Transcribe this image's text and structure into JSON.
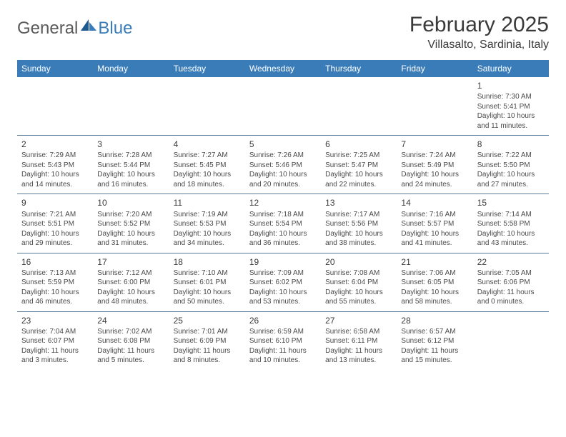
{
  "brand": {
    "general": "General",
    "blue": "Blue"
  },
  "title": "February 2025",
  "location": "Villasalto, Sardinia, Italy",
  "colors": {
    "header_bg": "#3a7cb8",
    "header_text": "#ffffff",
    "logo_gray": "#5a5a5a",
    "logo_blue": "#3a7cb8",
    "text": "#4a4a4a",
    "rule": "#5a7a9a"
  },
  "day_headers": [
    "Sunday",
    "Monday",
    "Tuesday",
    "Wednesday",
    "Thursday",
    "Friday",
    "Saturday"
  ],
  "weeks": [
    [
      {
        "empty": true
      },
      {
        "empty": true
      },
      {
        "empty": true
      },
      {
        "empty": true
      },
      {
        "empty": true
      },
      {
        "empty": true
      },
      {
        "n": "1",
        "sunrise": "Sunrise: 7:30 AM",
        "sunset": "Sunset: 5:41 PM",
        "daylight1": "Daylight: 10 hours",
        "daylight2": "and 11 minutes."
      }
    ],
    [
      {
        "n": "2",
        "sunrise": "Sunrise: 7:29 AM",
        "sunset": "Sunset: 5:43 PM",
        "daylight1": "Daylight: 10 hours",
        "daylight2": "and 14 minutes."
      },
      {
        "n": "3",
        "sunrise": "Sunrise: 7:28 AM",
        "sunset": "Sunset: 5:44 PM",
        "daylight1": "Daylight: 10 hours",
        "daylight2": "and 16 minutes."
      },
      {
        "n": "4",
        "sunrise": "Sunrise: 7:27 AM",
        "sunset": "Sunset: 5:45 PM",
        "daylight1": "Daylight: 10 hours",
        "daylight2": "and 18 minutes."
      },
      {
        "n": "5",
        "sunrise": "Sunrise: 7:26 AM",
        "sunset": "Sunset: 5:46 PM",
        "daylight1": "Daylight: 10 hours",
        "daylight2": "and 20 minutes."
      },
      {
        "n": "6",
        "sunrise": "Sunrise: 7:25 AM",
        "sunset": "Sunset: 5:47 PM",
        "daylight1": "Daylight: 10 hours",
        "daylight2": "and 22 minutes."
      },
      {
        "n": "7",
        "sunrise": "Sunrise: 7:24 AM",
        "sunset": "Sunset: 5:49 PM",
        "daylight1": "Daylight: 10 hours",
        "daylight2": "and 24 minutes."
      },
      {
        "n": "8",
        "sunrise": "Sunrise: 7:22 AM",
        "sunset": "Sunset: 5:50 PM",
        "daylight1": "Daylight: 10 hours",
        "daylight2": "and 27 minutes."
      }
    ],
    [
      {
        "n": "9",
        "sunrise": "Sunrise: 7:21 AM",
        "sunset": "Sunset: 5:51 PM",
        "daylight1": "Daylight: 10 hours",
        "daylight2": "and 29 minutes."
      },
      {
        "n": "10",
        "sunrise": "Sunrise: 7:20 AM",
        "sunset": "Sunset: 5:52 PM",
        "daylight1": "Daylight: 10 hours",
        "daylight2": "and 31 minutes."
      },
      {
        "n": "11",
        "sunrise": "Sunrise: 7:19 AM",
        "sunset": "Sunset: 5:53 PM",
        "daylight1": "Daylight: 10 hours",
        "daylight2": "and 34 minutes."
      },
      {
        "n": "12",
        "sunrise": "Sunrise: 7:18 AM",
        "sunset": "Sunset: 5:54 PM",
        "daylight1": "Daylight: 10 hours",
        "daylight2": "and 36 minutes."
      },
      {
        "n": "13",
        "sunrise": "Sunrise: 7:17 AM",
        "sunset": "Sunset: 5:56 PM",
        "daylight1": "Daylight: 10 hours",
        "daylight2": "and 38 minutes."
      },
      {
        "n": "14",
        "sunrise": "Sunrise: 7:16 AM",
        "sunset": "Sunset: 5:57 PM",
        "daylight1": "Daylight: 10 hours",
        "daylight2": "and 41 minutes."
      },
      {
        "n": "15",
        "sunrise": "Sunrise: 7:14 AM",
        "sunset": "Sunset: 5:58 PM",
        "daylight1": "Daylight: 10 hours",
        "daylight2": "and 43 minutes."
      }
    ],
    [
      {
        "n": "16",
        "sunrise": "Sunrise: 7:13 AM",
        "sunset": "Sunset: 5:59 PM",
        "daylight1": "Daylight: 10 hours",
        "daylight2": "and 46 minutes."
      },
      {
        "n": "17",
        "sunrise": "Sunrise: 7:12 AM",
        "sunset": "Sunset: 6:00 PM",
        "daylight1": "Daylight: 10 hours",
        "daylight2": "and 48 minutes."
      },
      {
        "n": "18",
        "sunrise": "Sunrise: 7:10 AM",
        "sunset": "Sunset: 6:01 PM",
        "daylight1": "Daylight: 10 hours",
        "daylight2": "and 50 minutes."
      },
      {
        "n": "19",
        "sunrise": "Sunrise: 7:09 AM",
        "sunset": "Sunset: 6:02 PM",
        "daylight1": "Daylight: 10 hours",
        "daylight2": "and 53 minutes."
      },
      {
        "n": "20",
        "sunrise": "Sunrise: 7:08 AM",
        "sunset": "Sunset: 6:04 PM",
        "daylight1": "Daylight: 10 hours",
        "daylight2": "and 55 minutes."
      },
      {
        "n": "21",
        "sunrise": "Sunrise: 7:06 AM",
        "sunset": "Sunset: 6:05 PM",
        "daylight1": "Daylight: 10 hours",
        "daylight2": "and 58 minutes."
      },
      {
        "n": "22",
        "sunrise": "Sunrise: 7:05 AM",
        "sunset": "Sunset: 6:06 PM",
        "daylight1": "Daylight: 11 hours",
        "daylight2": "and 0 minutes."
      }
    ],
    [
      {
        "n": "23",
        "sunrise": "Sunrise: 7:04 AM",
        "sunset": "Sunset: 6:07 PM",
        "daylight1": "Daylight: 11 hours",
        "daylight2": "and 3 minutes."
      },
      {
        "n": "24",
        "sunrise": "Sunrise: 7:02 AM",
        "sunset": "Sunset: 6:08 PM",
        "daylight1": "Daylight: 11 hours",
        "daylight2": "and 5 minutes."
      },
      {
        "n": "25",
        "sunrise": "Sunrise: 7:01 AM",
        "sunset": "Sunset: 6:09 PM",
        "daylight1": "Daylight: 11 hours",
        "daylight2": "and 8 minutes."
      },
      {
        "n": "26",
        "sunrise": "Sunrise: 6:59 AM",
        "sunset": "Sunset: 6:10 PM",
        "daylight1": "Daylight: 11 hours",
        "daylight2": "and 10 minutes."
      },
      {
        "n": "27",
        "sunrise": "Sunrise: 6:58 AM",
        "sunset": "Sunset: 6:11 PM",
        "daylight1": "Daylight: 11 hours",
        "daylight2": "and 13 minutes."
      },
      {
        "n": "28",
        "sunrise": "Sunrise: 6:57 AM",
        "sunset": "Sunset: 6:12 PM",
        "daylight1": "Daylight: 11 hours",
        "daylight2": "and 15 minutes."
      },
      {
        "empty": true
      }
    ]
  ]
}
